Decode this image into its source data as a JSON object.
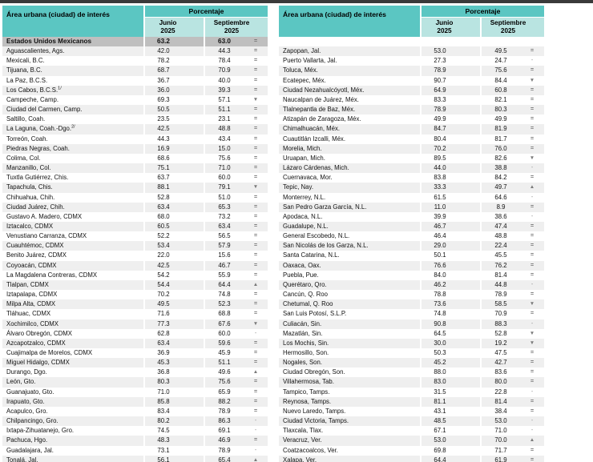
{
  "report": {
    "header": {
      "area_label": "Área urbana (ciudad) de interés",
      "group_label": "Porcentaje",
      "col_june": {
        "month": "Junio",
        "year": "2025"
      },
      "col_september": {
        "month": "Septiembre",
        "year": "2025"
      }
    },
    "colors": {
      "header_teal": "#5bc6c2",
      "subheader_teal": "#b9e4e1",
      "national_row_gray": "#bfbfbf",
      "stripe_gray": "#efefef",
      "top_bar": "#3a3a3a",
      "symbol_gray": "#7a7a7a"
    },
    "symbol_legend_glyphs": [
      "=",
      "-",
      "▲",
      "▼"
    ],
    "national": {
      "name": "Estados Unidos Mexicanos",
      "jun": "63.2",
      "sep": "63.0",
      "sym": "="
    },
    "left_rows": [
      {
        "name": "Aguascalientes, Ags.",
        "jun": "42.0",
        "sep": "44.3",
        "sym": "="
      },
      {
        "name": "Mexicali, B.C.",
        "jun": "78.2",
        "sep": "78.4",
        "sym": "="
      },
      {
        "name": "Tijuana, B.C.",
        "jun": "68.7",
        "sep": "70.9",
        "sym": "="
      },
      {
        "name": "La Paz, B.C.S.",
        "jun": "36.7",
        "sep": "40.0",
        "sym": "="
      },
      {
        "name": "Los Cabos, B.C.S.",
        "sup": "1/",
        "jun": "36.0",
        "sep": "39.3",
        "sym": "="
      },
      {
        "name": "Campeche, Camp.",
        "jun": "69.3",
        "sep": "57.1",
        "sym": "▼"
      },
      {
        "name": "Ciudad del Carmen, Camp.",
        "jun": "50.5",
        "sep": "51.1",
        "sym": "="
      },
      {
        "name": "Saltillo, Coah.",
        "jun": "23.5",
        "sep": "23.1",
        "sym": "="
      },
      {
        "name": "La Laguna, Coah.-Dgo.",
        "sup": "2/",
        "jun": "42.5",
        "sep": "48.8",
        "sym": "="
      },
      {
        "name": "Torreón, Coah.",
        "jun": "44.3",
        "sep": "43.4",
        "sym": "="
      },
      {
        "name": "Piedras Negras, Coah.",
        "jun": "16.9",
        "sep": "15.0",
        "sym": "="
      },
      {
        "name": "Colima, Col.",
        "jun": "68.6",
        "sep": "75.6",
        "sym": "="
      },
      {
        "name": "Manzanillo, Col.",
        "jun": "75.1",
        "sep": "71.0",
        "sym": "="
      },
      {
        "name": "Tuxtla Gutiérrez, Chis.",
        "jun": "63.7",
        "sep": "60.0",
        "sym": "="
      },
      {
        "name": "Tapachula, Chis.",
        "jun": "88.1",
        "sep": "79.1",
        "sym": "▼"
      },
      {
        "name": "Chihuahua, Chih.",
        "jun": "52.8",
        "sep": "51.0",
        "sym": "="
      },
      {
        "name": "Ciudad Juárez, Chih.",
        "jun": "63.4",
        "sep": "65.3",
        "sym": "="
      },
      {
        "name": "Gustavo A. Madero, CDMX",
        "jun": "68.0",
        "sep": "73.2",
        "sym": "="
      },
      {
        "name": "Iztacalco, CDMX",
        "jun": "60.5",
        "sep": "63.4",
        "sym": "="
      },
      {
        "name": "Venustiano Carranza, CDMX",
        "jun": "52.2",
        "sep": "56.5",
        "sym": "="
      },
      {
        "name": "Cuauhtémoc, CDMX",
        "jun": "53.4",
        "sep": "57.9",
        "sym": "="
      },
      {
        "name": "Benito Juárez, CDMX",
        "jun": "22.0",
        "sep": "15.6",
        "sym": "="
      },
      {
        "name": "Coyoacán, CDMX",
        "jun": "42.5",
        "sep": "46.7",
        "sym": "="
      },
      {
        "name": "La Magdalena Contreras, CDMX",
        "jun": "54.2",
        "sep": "55.9",
        "sym": "="
      },
      {
        "name": "Tlalpan, CDMX",
        "jun": "54.4",
        "sep": "64.4",
        "sym": "▲"
      },
      {
        "name": "Iztapalapa, CDMX",
        "jun": "70.2",
        "sep": "74.8",
        "sym": "="
      },
      {
        "name": "Milpa Alta, CDMX",
        "jun": "49.5",
        "sep": "52.3",
        "sym": "="
      },
      {
        "name": "Tláhuac, CDMX",
        "jun": "71.6",
        "sep": "68.8",
        "sym": "="
      },
      {
        "name": "Xochimilco, CDMX",
        "jun": "77.3",
        "sep": "67.6",
        "sym": "▼"
      },
      {
        "name": "Álvaro Obregón, CDMX",
        "jun": "62.8",
        "sep": "60.0",
        "sym": "-"
      },
      {
        "name": "Azcapotzalco, CDMX",
        "jun": "63.4",
        "sep": "59.6",
        "sym": "="
      },
      {
        "name": "Cuajimalpa de Morelos, CDMX",
        "jun": "36.9",
        "sep": "45.9",
        "sym": "="
      },
      {
        "name": "Miguel Hidalgo, CDMX",
        "jun": "45.3",
        "sep": "51.1",
        "sym": "="
      },
      {
        "name": "Durango, Dgo.",
        "jun": "36.8",
        "sep": "49.6",
        "sym": "▲"
      },
      {
        "name": "León, Gto.",
        "jun": "80.3",
        "sep": "75.6",
        "sym": "="
      },
      {
        "name": "Guanajuato, Gto.",
        "jun": "71.0",
        "sep": "65.9",
        "sym": "="
      },
      {
        "name": "Irapuato, Gto.",
        "jun": "85.8",
        "sep": "88.2",
        "sym": "="
      },
      {
        "name": "Acapulco, Gro.",
        "jun": "83.4",
        "sep": "78.9",
        "sym": "="
      },
      {
        "name": "Chilpancingo, Gro.",
        "jun": "80.2",
        "sep": "86.3",
        "sym": "-"
      },
      {
        "name": "Ixtapa-Zihuatanejo, Gro.",
        "jun": "74.5",
        "sep": "69.1",
        "sym": "-"
      },
      {
        "name": "Pachuca, Hgo.",
        "jun": "48.3",
        "sep": "46.9",
        "sym": "="
      },
      {
        "name": "Guadalajara, Jal.",
        "jun": "73.1",
        "sep": "78.9",
        "sym": "-"
      },
      {
        "name": "Tonalá, Jal.",
        "jun": "56.1",
        "sep": "65.4",
        "sym": "▲"
      }
    ],
    "right_rows": [
      {
        "name": "Zapopan, Jal.",
        "jun": "53.0",
        "sep": "49.5",
        "sym": "="
      },
      {
        "name": "Puerto Vallarta, Jal.",
        "jun": "27.3",
        "sep": "24.7",
        "sym": "-"
      },
      {
        "name": "Toluca, Méx.",
        "jun": "78.9",
        "sep": "75.6",
        "sym": "="
      },
      {
        "name": "Ecatepec, Méx.",
        "jun": "90.7",
        "sep": "84.4",
        "sym": "▼"
      },
      {
        "name": "Ciudad Nezahualcóyotl, Méx.",
        "jun": "64.9",
        "sep": "60.8",
        "sym": "="
      },
      {
        "name": "Naucalpan de Juárez, Méx.",
        "jun": "83.3",
        "sep": "82.1",
        "sym": "="
      },
      {
        "name": "Tlalnepantla de Baz, Méx.",
        "jun": "78.9",
        "sep": "80.3",
        "sym": "="
      },
      {
        "name": "Atizapán de Zaragoza, Méx.",
        "jun": "49.9",
        "sep": "49.9",
        "sym": "="
      },
      {
        "name": "Chimalhuacán, Méx.",
        "jun": "84.7",
        "sep": "81.9",
        "sym": "="
      },
      {
        "name": "Cuautitlán Izcalli, Méx.",
        "jun": "80.4",
        "sep": "81.7",
        "sym": "="
      },
      {
        "name": "Morelia, Mich.",
        "jun": "70.2",
        "sep": "76.0",
        "sym": "="
      },
      {
        "name": "Uruapan, Mich.",
        "jun": "89.5",
        "sep": "82.6",
        "sym": "▼"
      },
      {
        "name": "Lázaro Cárdenas, Mich.",
        "jun": "44.0",
        "sep": "38.8",
        "sym": "-"
      },
      {
        "name": "Cuernavaca, Mor.",
        "jun": "83.8",
        "sep": "84.2",
        "sym": "="
      },
      {
        "name": "Tepic, Nay.",
        "jun": "33.3",
        "sep": "49.7",
        "sym": "▲"
      },
      {
        "name": "Monterrey, N.L.",
        "jun": "61.5",
        "sep": "64.6",
        "sym": "-"
      },
      {
        "name": "San Pedro Garza García, N.L.",
        "jun": "11.0",
        "sep": "8.9",
        "sym": "="
      },
      {
        "name": "Apodaca, N.L.",
        "jun": "39.9",
        "sep": "38.6",
        "sym": "-"
      },
      {
        "name": "Guadalupe, N.L.",
        "jun": "46.7",
        "sep": "47.4",
        "sym": "="
      },
      {
        "name": "General Escobedo, N.L.",
        "jun": "46.4",
        "sep": "48.8",
        "sym": "="
      },
      {
        "name": "San Nicolás de los Garza, N.L.",
        "jun": "29.0",
        "sep": "22.4",
        "sym": "="
      },
      {
        "name": "Santa Catarina, N.L.",
        "jun": "50.1",
        "sep": "45.5",
        "sym": "="
      },
      {
        "name": "Oaxaca, Oax.",
        "jun": "76.6",
        "sep": "76.2",
        "sym": "="
      },
      {
        "name": "Puebla, Pue.",
        "jun": "84.0",
        "sep": "81.4",
        "sym": "="
      },
      {
        "name": "Querétaro, Qro.",
        "jun": "46.2",
        "sep": "44.8",
        "sym": "-"
      },
      {
        "name": "Cancún, Q. Roo",
        "jun": "78.8",
        "sep": "78.9",
        "sym": "="
      },
      {
        "name": "Chetumal, Q. Roo",
        "jun": "73.6",
        "sep": "58.5",
        "sym": "▼"
      },
      {
        "name": "San Luis Potosí, S.L.P.",
        "jun": "74.8",
        "sep": "70.9",
        "sym": "="
      },
      {
        "name": "Culiacán, Sin.",
        "jun": "90.8",
        "sep": "88.3",
        "sym": "-"
      },
      {
        "name": "Mazatlán, Sin.",
        "jun": "64.5",
        "sep": "52.8",
        "sym": "▼"
      },
      {
        "name": "Los Mochis, Sin.",
        "jun": "30.0",
        "sep": "19.2",
        "sym": "▼"
      },
      {
        "name": "Hermosillo, Son.",
        "jun": "50.3",
        "sep": "47.5",
        "sym": "="
      },
      {
        "name": "Nogales, Son.",
        "jun": "45.2",
        "sep": "42.7",
        "sym": "="
      },
      {
        "name": "Ciudad Obregón, Son.",
        "jun": "88.0",
        "sep": "83.6",
        "sym": "="
      },
      {
        "name": "Villahermosa, Tab.",
        "jun": "83.0",
        "sep": "80.0",
        "sym": "="
      },
      {
        "name": "Tampico, Tamps.",
        "jun": "31.5",
        "sep": "22.8",
        "sym": "-"
      },
      {
        "name": "Reynosa, Tamps.",
        "jun": "81.1",
        "sep": "81.4",
        "sym": "="
      },
      {
        "name": "Nuevo Laredo, Tamps.",
        "jun": "43.1",
        "sep": "38.4",
        "sym": "="
      },
      {
        "name": "Ciudad Victoria, Tamps.",
        "jun": "48.5",
        "sep": "53.0",
        "sym": "-"
      },
      {
        "name": "Tlaxcala, Tlax.",
        "jun": "67.1",
        "sep": "71.0",
        "sym": "-"
      },
      {
        "name": "Veracruz, Ver.",
        "jun": "53.0",
        "sep": "70.0",
        "sym": "▲"
      },
      {
        "name": "Coatzacoalcos, Ver.",
        "jun": "69.8",
        "sep": "71.7",
        "sym": "="
      },
      {
        "name": "Xalapa, Ver.",
        "jun": "64.4",
        "sep": "61.9",
        "sym": "="
      }
    ]
  }
}
